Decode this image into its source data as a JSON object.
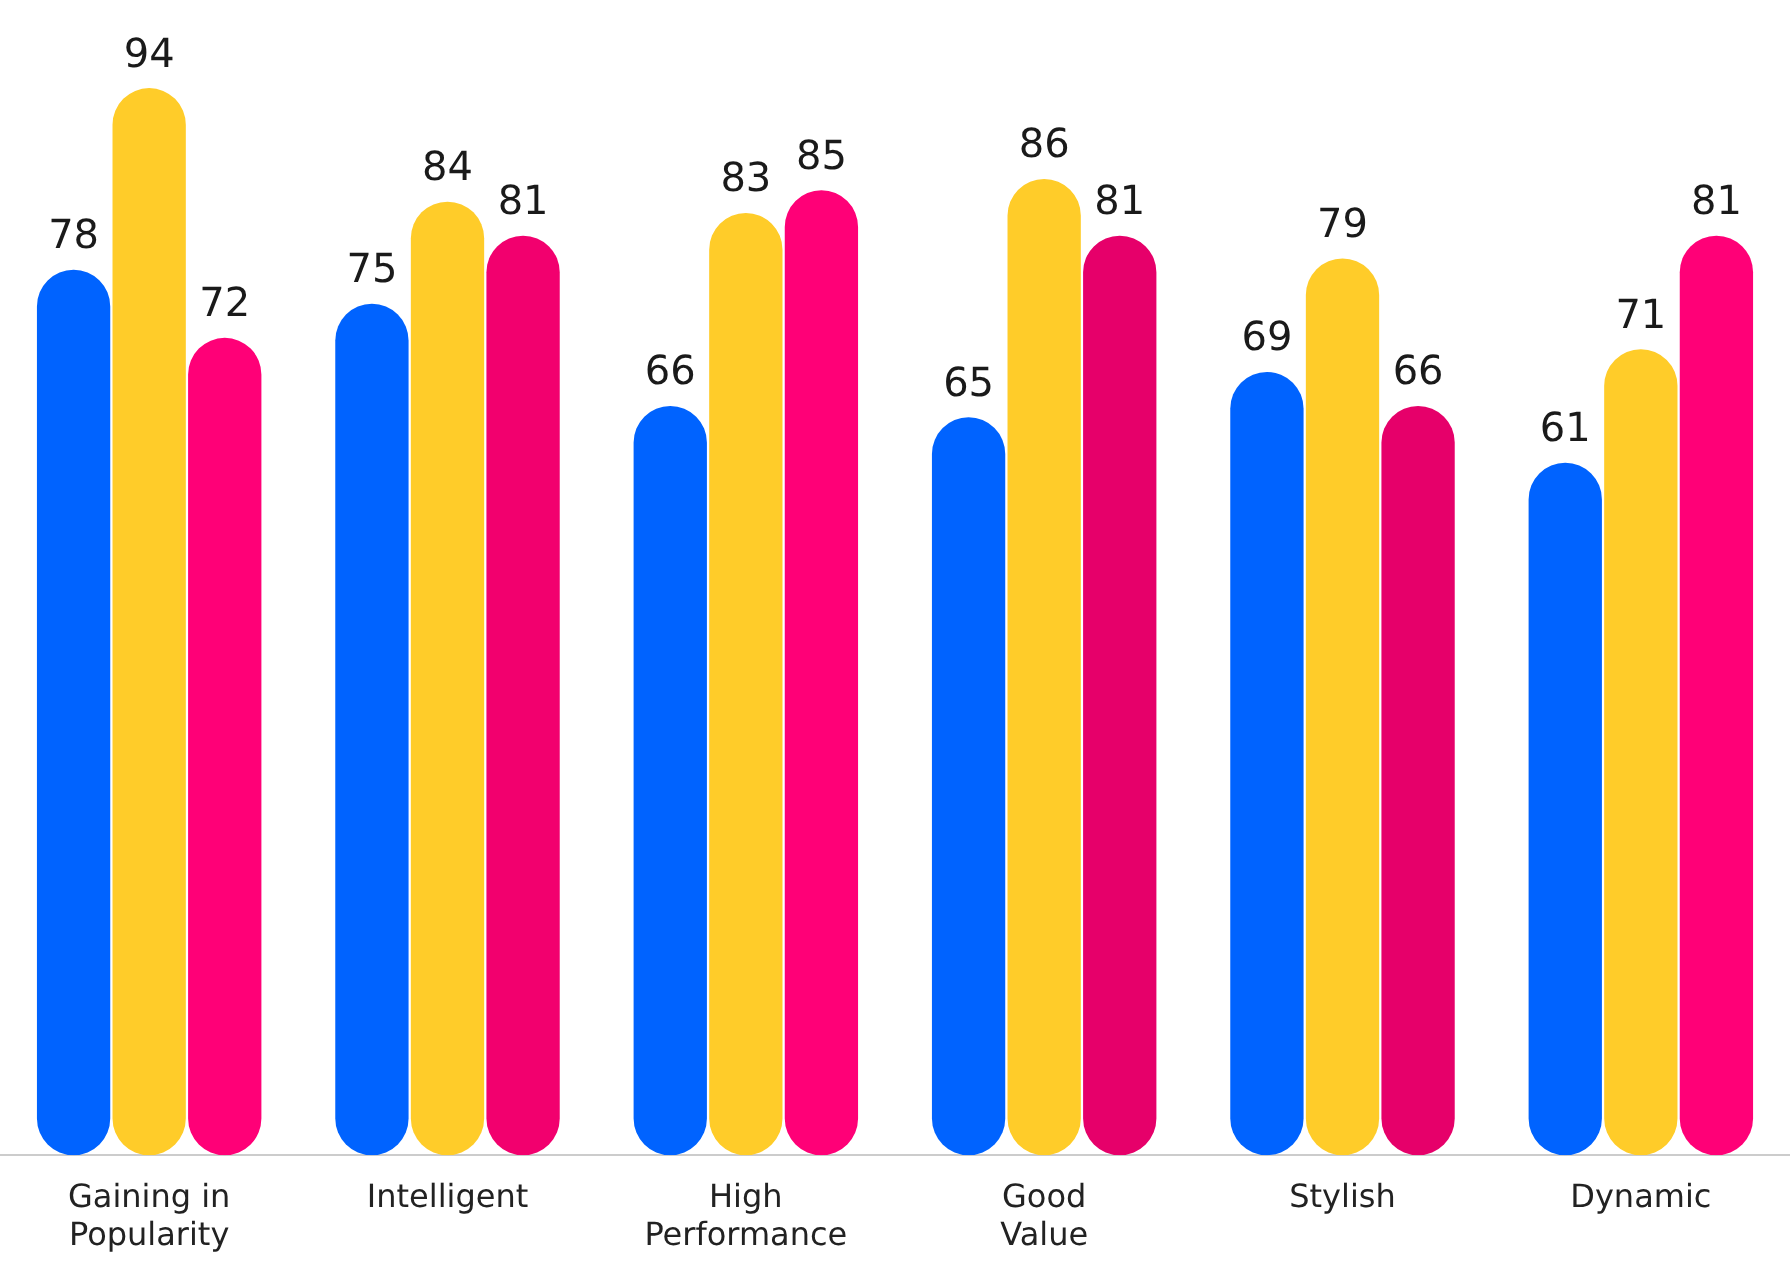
{
  "chart_data": {
    "type": "bar",
    "categories": [
      "Gaining in\nPopularity",
      "Intelligent",
      "High\nPerformance",
      "Good\nValue",
      "Stylish",
      "Dynamic"
    ],
    "series": [
      {
        "color": "#0063ff",
        "values": [
          78,
          75,
          66,
          65,
          69,
          61
        ]
      },
      {
        "color": "#ffcc29",
        "values": [
          94,
          84,
          83,
          86,
          79,
          71
        ]
      },
      {
        "color": "#ff0077",
        "colors": [
          "#ff0077",
          "#f2006e",
          "#ff0077",
          "#e6006a",
          "#e6006a",
          "#ff0077"
        ],
        "values": [
          72,
          81,
          85,
          81,
          66,
          81
        ]
      }
    ],
    "tick_labels": "x",
    "grid": false,
    "legend": false,
    "data_labels": true
  }
}
